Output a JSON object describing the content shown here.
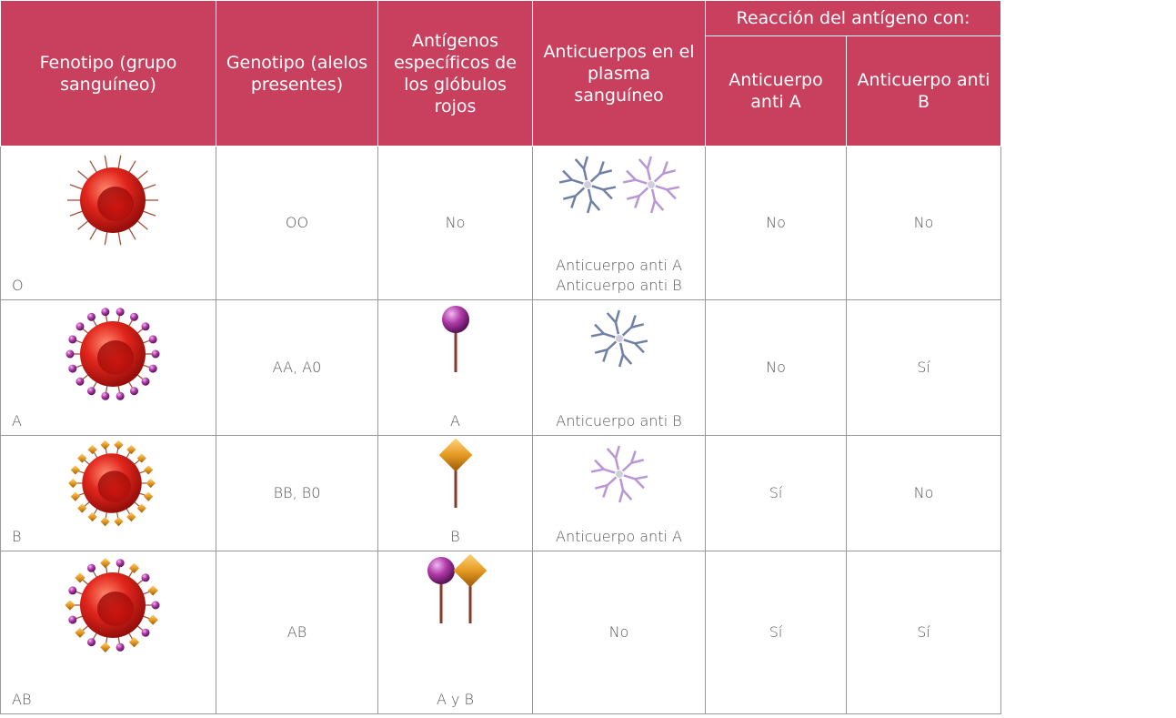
{
  "table": {
    "headers": [
      "Fenotipo (grupo sanguíneo)",
      "Genotipo (alelos presentes)",
      "Antígenos específicos de los glóbulos rojos",
      "Anticuerpos en el plasma sanguíneo",
      "Reacción del antígeno con:"
    ],
    "subheaders": [
      "Anticuerpo anti A",
      "Anticuerpo anti B"
    ],
    "rows": [
      [
        "O",
        "OO",
        "No",
        [
          "Anticuerpo anti A",
          "Anticuerpo anti B"
        ],
        "No",
        "No"
      ],
      [
        "A",
        "AA, A0",
        "A",
        "Anticuerpo anti B",
        "No",
        "Sí"
      ],
      [
        "B",
        "BB, B0",
        "B",
        "Anticuerpo anti A",
        "Sí",
        "No"
      ],
      [
        "AB",
        "AB",
        "A y B",
        "No",
        "Sí",
        "Sí"
      ]
    ]
  }
}
